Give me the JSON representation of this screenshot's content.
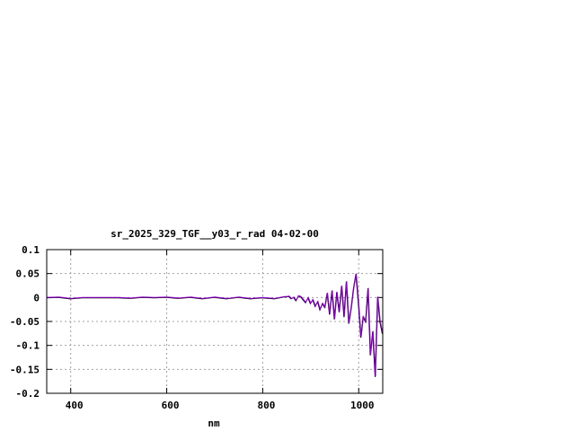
{
  "chart_data": {
    "type": "line",
    "title": "sr_2025_329_TGF__y03_r_rad 04-02-00",
    "xlabel": "nm",
    "ylabel": "",
    "xlim": [
      350,
      1050
    ],
    "ylim": [
      -0.2,
      0.1
    ],
    "xticks": [
      400,
      600,
      800,
      1000
    ],
    "xtick_labels": [
      "400",
      "600",
      "800",
      "1000"
    ],
    "yticks": [
      0.1,
      0.05,
      0,
      -0.05,
      -0.1,
      -0.15,
      -0.2
    ],
    "ytick_labels": [
      "0.1",
      "0.05",
      "0",
      "-0.05",
      "-0.1",
      "-0.15",
      "-0.2"
    ],
    "grid": true,
    "series": [
      {
        "color": "#000000",
        "x": [
          350,
          375,
          400,
          425,
          450,
          475,
          500,
          525,
          550,
          575,
          600,
          625,
          650,
          675,
          700,
          725,
          750,
          775,
          800,
          825,
          845,
          850,
          855,
          860,
          865,
          870,
          875,
          880,
          885,
          890,
          895,
          900,
          905,
          910,
          915,
          920,
          925,
          930,
          935,
          940,
          945,
          950,
          955,
          960,
          965,
          970,
          975,
          980,
          985,
          990,
          995,
          1000,
          1005,
          1010,
          1015,
          1020,
          1025,
          1030,
          1035,
          1040,
          1045,
          1050
        ],
        "y": [
          0,
          0.001,
          -0.002,
          0,
          0,
          0,
          0,
          -0.001,
          0.001,
          0,
          0.001,
          -0.001,
          0.001,
          -0.002,
          0.001,
          -0.002,
          0.001,
          -0.002,
          0,
          -0.002,
          0.002,
          0.002,
          0.003,
          -0.002,
          0.001,
          -0.006,
          0.004,
          0.002,
          -0.004,
          -0.01,
          0,
          -0.012,
          -0.004,
          -0.018,
          -0.008,
          -0.025,
          -0.012,
          -0.02,
          0.01,
          -0.035,
          0.015,
          -0.045,
          0.012,
          -0.03,
          0.025,
          -0.04,
          0.034,
          -0.054,
          -0.02,
          0.02,
          0.05,
          -0.01,
          -0.083,
          -0.04,
          -0.05,
          0.02,
          -0.12,
          -0.07,
          -0.165,
          0.002,
          -0.05,
          -0.075
        ]
      },
      {
        "color": "#9400d3",
        "x": [
          350,
          375,
          400,
          425,
          450,
          475,
          500,
          525,
          550,
          575,
          600,
          625,
          650,
          675,
          700,
          725,
          750,
          775,
          800,
          825,
          845,
          850,
          855,
          860,
          865,
          870,
          875,
          880,
          885,
          890,
          895,
          900,
          905,
          910,
          915,
          920,
          925,
          930,
          935,
          940,
          945,
          950,
          955,
          960,
          965,
          970,
          975,
          980,
          985,
          990,
          995,
          1000,
          1005,
          1010,
          1015,
          1020,
          1025,
          1030,
          1035,
          1040,
          1045,
          1050
        ],
        "y": [
          0,
          0.001,
          -0.002,
          0,
          0,
          0,
          0,
          -0.001,
          0.001,
          0,
          0.001,
          -0.001,
          0.001,
          -0.002,
          0.001,
          -0.002,
          0.001,
          -0.002,
          0,
          -0.002,
          0.002,
          0.002,
          0.003,
          -0.002,
          0.001,
          -0.006,
          0.004,
          0.002,
          -0.004,
          -0.01,
          0,
          -0.012,
          -0.004,
          -0.018,
          -0.008,
          -0.025,
          -0.012,
          -0.02,
          0.01,
          -0.035,
          0.015,
          -0.045,
          0.012,
          -0.03,
          0.025,
          -0.04,
          0.034,
          -0.054,
          -0.02,
          0.02,
          0.05,
          -0.01,
          -0.083,
          -0.04,
          -0.05,
          0.02,
          -0.12,
          -0.07,
          -0.165,
          0.002,
          -0.05,
          -0.075
        ]
      }
    ]
  }
}
